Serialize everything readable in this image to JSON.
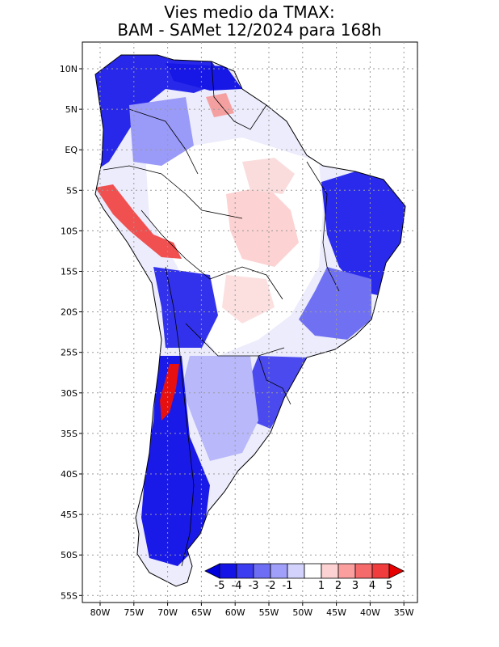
{
  "title": {
    "line1": "Vies medio da TMAX:",
    "line2": "BAM - SAMet 12/2024  para 168h"
  },
  "axes": {
    "lat_labels": [
      "10N",
      "5N",
      "EQ",
      "5S",
      "10S",
      "15S",
      "20S",
      "25S",
      "30S",
      "35S",
      "40S",
      "45S",
      "50S",
      "55S"
    ],
    "lon_labels": [
      "80W",
      "75W",
      "70W",
      "65W",
      "60W",
      "55W",
      "50W",
      "45W",
      "40W",
      "35W"
    ],
    "lat_range": [
      -56,
      13
    ],
    "lon_range": [
      -84,
      -34
    ]
  },
  "colorbar": {
    "labels": [
      "-5",
      "-4",
      "-3",
      "-2",
      "-1",
      "1",
      "2",
      "3",
      "4",
      "5"
    ],
    "bins": [
      {
        "color": "#1414e6"
      },
      {
        "color": "#3c3cf0"
      },
      {
        "color": "#6e6ef5"
      },
      {
        "color": "#a0a0fa"
      },
      {
        "color": "#d2d2fc"
      },
      {
        "color": "#ffffff"
      },
      {
        "color": "#fcd2d2"
      },
      {
        "color": "#fa9e9e"
      },
      {
        "color": "#f56a6a"
      },
      {
        "color": "#f03c3c"
      }
    ],
    "low_arrow_color": "#0000dc",
    "high_arrow_color": "#e60000"
  },
  "colors": {
    "strong_cold": "#1e1ee8",
    "moderate_cold": "#5a5af0",
    "light_cold": "#a8a8f8",
    "very_light_cold": "#dcdcfc",
    "neutral": "#ffffff",
    "light_warm": "#fcd6d6",
    "warm": "#f58080",
    "strong_warm": "#e81414",
    "border": "#000000",
    "grid": "#9a9a9a"
  }
}
